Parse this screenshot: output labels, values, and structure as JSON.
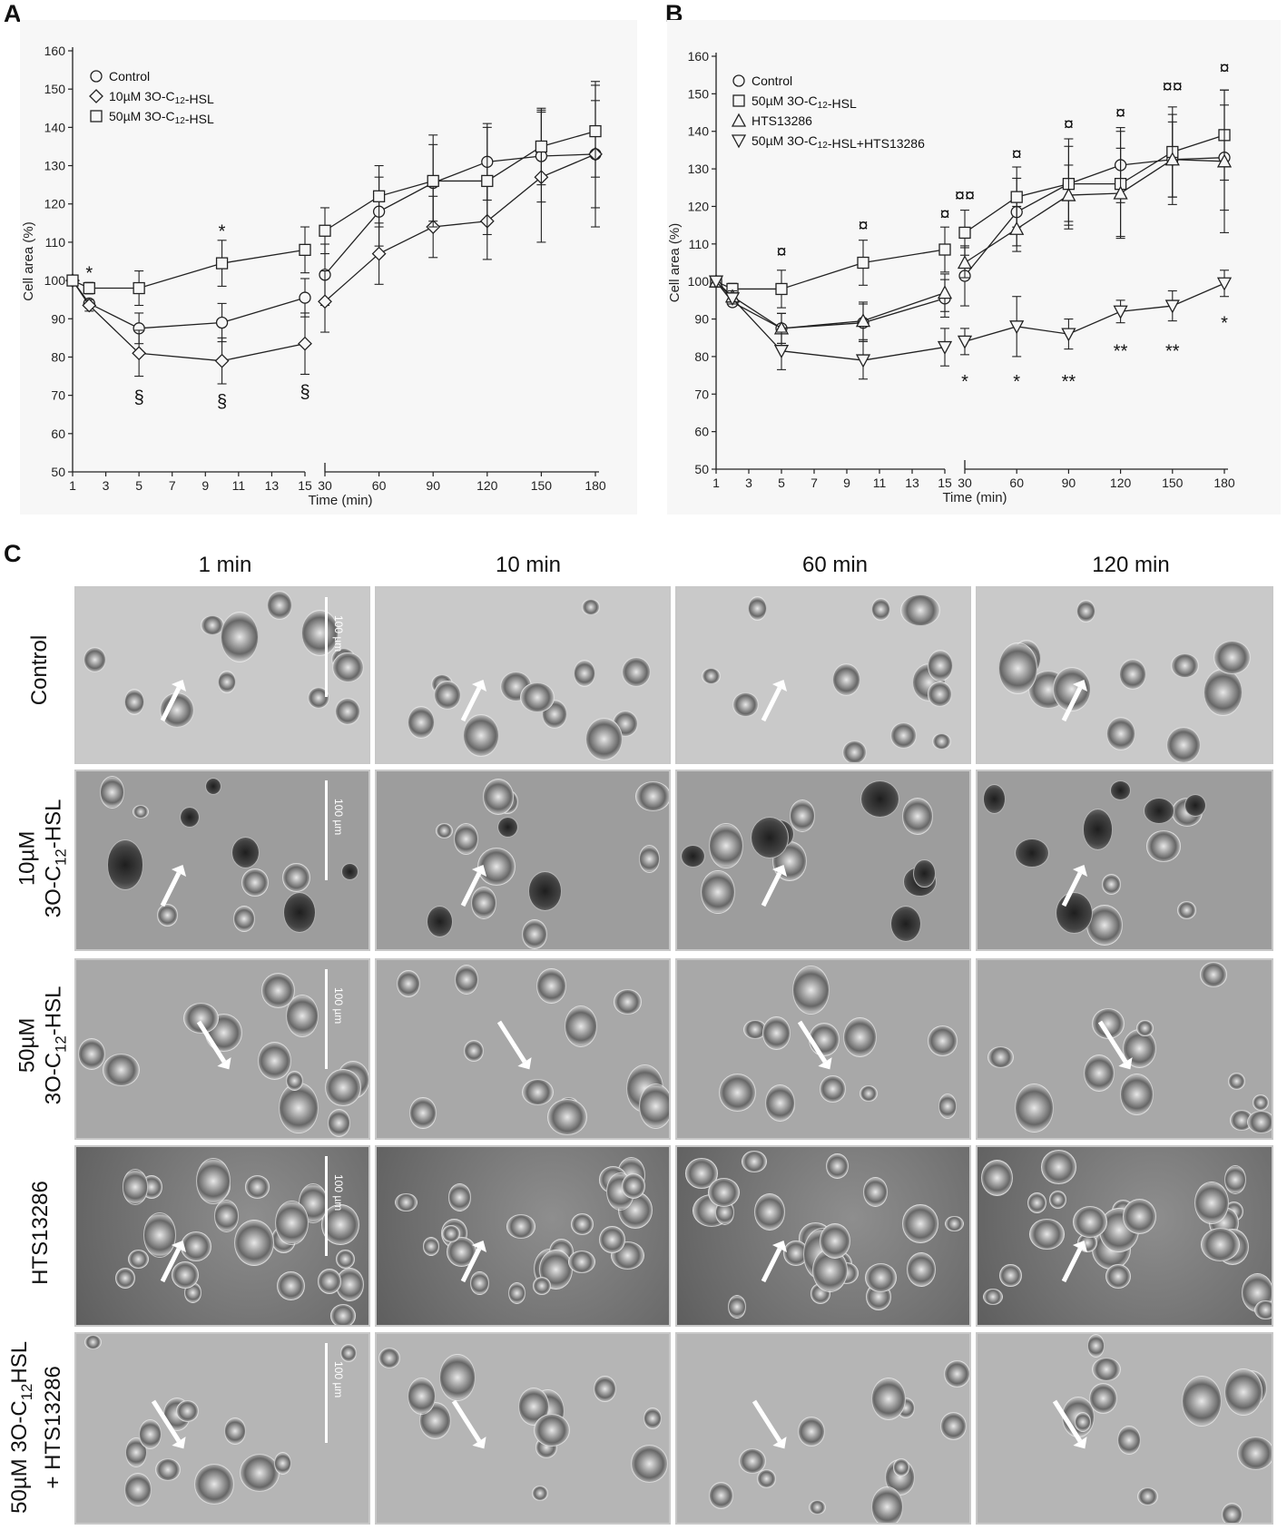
{
  "panel_labels": {
    "a": "A",
    "b": "B",
    "c": "C"
  },
  "chart_data": [
    {
      "type": "line",
      "panel": "A",
      "xlabel": "Time (min)",
      "ylabel": "Cell area (%)",
      "ylim": [
        50,
        160
      ],
      "yticks": [
        50,
        60,
        70,
        80,
        90,
        100,
        110,
        120,
        130,
        140,
        150,
        160
      ],
      "xticks_left": [
        1,
        3,
        5,
        7,
        9,
        11,
        13,
        15
      ],
      "xticks_right": [
        30,
        60,
        90,
        120,
        150,
        180
      ],
      "axis_break": "between 15 and 30",
      "grid": false,
      "legend_position": "top-left",
      "series": [
        {
          "name": "Control",
          "marker": "circle",
          "x": [
            1,
            2,
            5,
            10,
            15,
            30,
            60,
            90,
            120,
            150,
            180
          ],
          "y": [
            100,
            94,
            87.5,
            89,
            95.5,
            101.5,
            118,
            125.5,
            131,
            132.5,
            133
          ],
          "err": [
            0,
            1,
            4,
            5,
            5,
            8,
            9,
            10,
            10,
            12,
            14
          ]
        },
        {
          "name": "10µM 3O-C12-HSL",
          "marker": "diamond",
          "x": [
            1,
            2,
            5,
            10,
            15,
            30,
            60,
            90,
            120,
            150,
            180
          ],
          "y": [
            100,
            93.5,
            81,
            79,
            83.5,
            94.5,
            107,
            114,
            115.5,
            127,
            133
          ],
          "err": [
            0,
            1.5,
            6,
            6,
            8,
            8,
            8,
            8,
            10,
            17,
            19
          ]
        },
        {
          "name": "50µM 3O-C12-HSL",
          "marker": "square",
          "x": [
            1,
            2,
            5,
            10,
            15,
            30,
            60,
            90,
            120,
            150,
            180
          ],
          "y": [
            100,
            98,
            98,
            104.5,
            108,
            113,
            122,
            126,
            126,
            135,
            139
          ],
          "err": [
            0,
            1.5,
            4.5,
            6,
            6,
            6,
            8,
            12,
            14,
            10,
            12
          ]
        }
      ],
      "annotations": [
        {
          "x": 2,
          "y": 102,
          "text": "*"
        },
        {
          "x": 10,
          "y": 113,
          "text": "*"
        },
        {
          "x": 5,
          "y": 69.5,
          "text": "§"
        },
        {
          "x": 10,
          "y": 68.5,
          "text": "§"
        },
        {
          "x": 15,
          "y": 71,
          "text": "§"
        }
      ]
    },
    {
      "type": "line",
      "panel": "B",
      "xlabel": "Time (min)",
      "ylabel": "Cell area (%)",
      "ylim": [
        50,
        160
      ],
      "yticks": [
        50,
        60,
        70,
        80,
        90,
        100,
        110,
        120,
        130,
        140,
        150,
        160
      ],
      "xticks_left": [
        1,
        3,
        5,
        7,
        9,
        11,
        13,
        15
      ],
      "xticks_right": [
        30,
        60,
        90,
        120,
        150,
        180
      ],
      "axis_break": "between 15 and 30",
      "grid": false,
      "legend_position": "top-left",
      "series": [
        {
          "name": "Control",
          "marker": "circle",
          "x": [
            1,
            2,
            5,
            10,
            15,
            30,
            60,
            90,
            120,
            150,
            180
          ],
          "y": [
            100,
            94.5,
            87.5,
            89,
            95.5,
            101.5,
            118.5,
            126,
            131,
            132.5,
            133
          ],
          "err": [
            0,
            1,
            4,
            5,
            5,
            8,
            9,
            10,
            10,
            12,
            14
          ]
        },
        {
          "name": "50µM 3O-C12-HSL",
          "marker": "square",
          "x": [
            1,
            2,
            5,
            10,
            15,
            30,
            60,
            90,
            120,
            150,
            180
          ],
          "y": [
            100,
            98,
            98,
            105,
            108.5,
            113,
            122.5,
            126,
            126,
            134.5,
            139
          ],
          "err": [
            0,
            1.5,
            5,
            6,
            6,
            6,
            8,
            12,
            14,
            12,
            12
          ]
        },
        {
          "name": "HTS13286",
          "marker": "triangle-up",
          "x": [
            1,
            2,
            5,
            10,
            15,
            30,
            60,
            90,
            120,
            150,
            180
          ],
          "y": [
            100,
            96,
            87.5,
            89.5,
            97,
            105,
            114,
            123,
            123.5,
            132.5,
            132
          ],
          "err": [
            0,
            1.5,
            4,
            5,
            5,
            4,
            6,
            8,
            12,
            10,
            19
          ]
        },
        {
          "name": "50µM 3O-C12-HSL+HTS13286",
          "marker": "triangle-down",
          "x": [
            1,
            2,
            5,
            10,
            15,
            30,
            60,
            90,
            120,
            150,
            180
          ],
          "y": [
            100,
            95.5,
            81.5,
            79,
            82.5,
            84,
            88,
            86,
            92,
            93.5,
            99.5
          ],
          "err": [
            0,
            1.5,
            5,
            5,
            5,
            3.5,
            8,
            4,
            3,
            4,
            3.5
          ]
        }
      ],
      "annotations": [
        {
          "x": 5,
          "y": 108,
          "text": "¤"
        },
        {
          "x": 10,
          "y": 115,
          "text": "¤"
        },
        {
          "x": 15,
          "y": 118,
          "text": "¤"
        },
        {
          "x": 30,
          "y": 123,
          "text": "¤¤"
        },
        {
          "x": 60,
          "y": 134,
          "text": "¤"
        },
        {
          "x": 90,
          "y": 142,
          "text": "¤"
        },
        {
          "x": 120,
          "y": 145,
          "text": "¤"
        },
        {
          "x": 150,
          "y": 152,
          "text": "¤¤"
        },
        {
          "x": 180,
          "y": 157,
          "text": "¤"
        },
        {
          "x": 30,
          "y": 73.5,
          "text": "*"
        },
        {
          "x": 60,
          "y": 73.5,
          "text": "*"
        },
        {
          "x": 90,
          "y": 73.5,
          "text": "**"
        },
        {
          "x": 120,
          "y": 81.5,
          "text": "**"
        },
        {
          "x": 150,
          "y": 81.5,
          "text": "**"
        },
        {
          "x": 180,
          "y": 89,
          "text": "*"
        }
      ]
    }
  ],
  "panel_c": {
    "columns": [
      "1 min",
      "10 min",
      "60 min",
      "120 min"
    ],
    "rows": [
      {
        "lines": [
          "Control"
        ]
      },
      {
        "lines": [
          "10µM",
          "3O-C12-HSL"
        ]
      },
      {
        "lines": [
          "50µM",
          "3O-C12-HSL"
        ]
      },
      {
        "lines": [
          "HTS13286"
        ]
      },
      {
        "lines": [
          "50µM 3O-C12HSL",
          "+ HTS13286"
        ]
      }
    ],
    "scale_label": "100 µm"
  }
}
